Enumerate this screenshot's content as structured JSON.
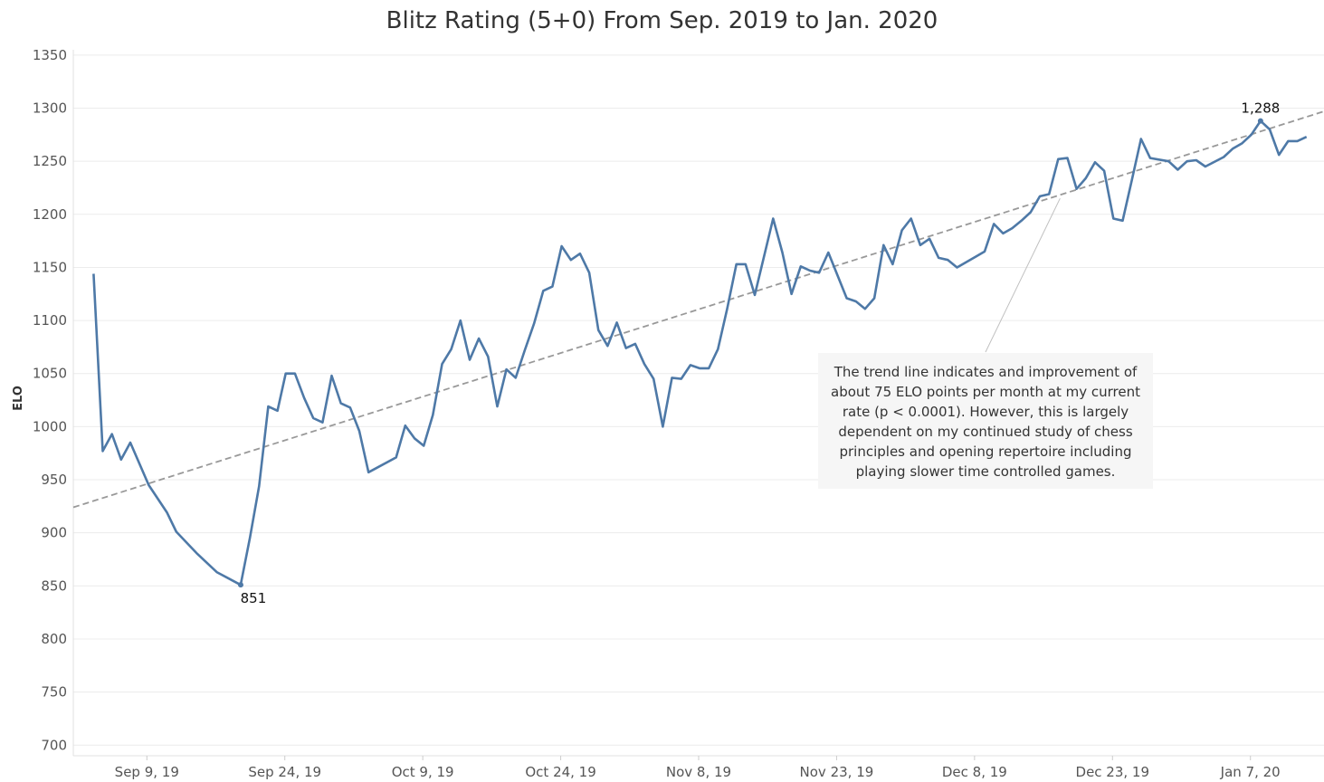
{
  "chart_data": {
    "type": "line",
    "title": "Blitz Rating (5+0) From Sep. 2019 to Jan. 2020",
    "xlabel": "",
    "ylabel": "ELO",
    "ylim": [
      690,
      1355
    ],
    "x_range": [
      "2019-09-01",
      "2020-01-15"
    ],
    "yticks": [
      700,
      750,
      800,
      850,
      900,
      950,
      1000,
      1050,
      1100,
      1150,
      1200,
      1250,
      1300,
      1350
    ],
    "xticks": [
      {
        "date": "2019-09-09",
        "label": "Sep 9, 19"
      },
      {
        "date": "2019-09-24",
        "label": "Sep 24, 19"
      },
      {
        "date": "2019-10-09",
        "label": "Oct 9, 19"
      },
      {
        "date": "2019-10-24",
        "label": "Oct 24, 19"
      },
      {
        "date": "2019-11-08",
        "label": "Nov 8, 19"
      },
      {
        "date": "2019-11-23",
        "label": "Nov 23, 19"
      },
      {
        "date": "2019-12-08",
        "label": "Dec 8, 19"
      },
      {
        "date": "2019-12-23",
        "label": "Dec 23, 19"
      },
      {
        "date": "2020-01-07",
        "label": "Jan 7, 20"
      }
    ],
    "grid": true,
    "series": [
      {
        "color": "#4e79a7",
        "points": [
          [
            "2019-09-03.2",
            1144
          ],
          [
            "2019-09-04.2",
            977
          ],
          [
            "2019-09-05.2",
            993
          ],
          [
            "2019-09-06.2",
            969
          ],
          [
            "2019-09-07.2",
            985
          ],
          [
            "2019-09-09.2",
            945
          ],
          [
            "2019-09-11.2",
            919
          ],
          [
            "2019-09-12.2",
            901
          ],
          [
            "2019-09-14.5",
            880
          ],
          [
            "2019-09-16.6",
            863
          ],
          [
            "2019-09-19.2",
            851
          ],
          [
            "2019-09-20.2",
            895
          ],
          [
            "2019-09-21.2",
            944
          ],
          [
            "2019-09-22.2",
            1019
          ],
          [
            "2019-09-23.2",
            1015
          ],
          [
            "2019-09-24.1",
            1050
          ],
          [
            "2019-09-25.1",
            1050
          ],
          [
            "2019-09-26.1",
            1027
          ],
          [
            "2019-09-27.1",
            1008
          ],
          [
            "2019-09-28.1",
            1004
          ],
          [
            "2019-09-29.1",
            1048
          ],
          [
            "2019-09-30.1",
            1022
          ],
          [
            "2019-10-01.1",
            1018
          ],
          [
            "2019-10-02.1",
            996
          ],
          [
            "2019-10-03.1",
            957
          ],
          [
            "2019-10-06.1",
            971
          ],
          [
            "2019-10-07.1",
            1001
          ],
          [
            "2019-10-08.1",
            989
          ],
          [
            "2019-10-09.1",
            982
          ],
          [
            "2019-10-10.1",
            1011
          ],
          [
            "2019-10-11.1",
            1059
          ],
          [
            "2019-10-12.1",
            1073
          ],
          [
            "2019-10-13.1",
            1100
          ],
          [
            "2019-10-14.1",
            1063
          ],
          [
            "2019-10-15.1",
            1083
          ],
          [
            "2019-10-16.1",
            1066
          ],
          [
            "2019-10-17.1",
            1019
          ],
          [
            "2019-10-18.1",
            1054
          ],
          [
            "2019-10-19.1",
            1046
          ],
          [
            "2019-10-20.1",
            1072
          ],
          [
            "2019-10-21.1",
            1097
          ],
          [
            "2019-10-22.1",
            1128
          ],
          [
            "2019-10-23.1",
            1132
          ],
          [
            "2019-10-24.1",
            1170
          ],
          [
            "2019-10-25.1",
            1157
          ],
          [
            "2019-10-26.1",
            1163
          ],
          [
            "2019-10-27.1",
            1145
          ],
          [
            "2019-10-28.1",
            1091
          ],
          [
            "2019-10-29.1",
            1076
          ],
          [
            "2019-10-30.1",
            1098
          ],
          [
            "2019-10-31.1",
            1074
          ],
          [
            "2019-11-01.1",
            1078
          ],
          [
            "2019-11-02.1",
            1059
          ],
          [
            "2019-11-03.1",
            1045
          ],
          [
            "2019-11-04.1",
            1000
          ],
          [
            "2019-11-05.1",
            1046
          ],
          [
            "2019-11-06.1",
            1045
          ],
          [
            "2019-11-07.1",
            1058
          ],
          [
            "2019-11-08.1",
            1055
          ],
          [
            "2019-11-09.1",
            1055
          ],
          [
            "2019-11-10.1",
            1073
          ],
          [
            "2019-11-11.1",
            1111
          ],
          [
            "2019-11-12.1",
            1153
          ],
          [
            "2019-11-13.1",
            1153
          ],
          [
            "2019-11-14.1",
            1124
          ],
          [
            "2019-11-16.1",
            1196
          ],
          [
            "2019-11-17.1",
            1164
          ],
          [
            "2019-11-18.1",
            1125
          ],
          [
            "2019-11-19.1",
            1151
          ],
          [
            "2019-11-20.1",
            1147
          ],
          [
            "2019-11-21.1",
            1145
          ],
          [
            "2019-11-22.1",
            1164
          ],
          [
            "2019-11-24.1",
            1121
          ],
          [
            "2019-11-25.1",
            1118
          ],
          [
            "2019-11-26.1",
            1111
          ],
          [
            "2019-11-27.1",
            1121
          ],
          [
            "2019-11-28.1",
            1171
          ],
          [
            "2019-11-29.1",
            1153
          ],
          [
            "2019-11-30.1",
            1185
          ],
          [
            "2019-12-01.1",
            1196
          ],
          [
            "2019-12-02.1",
            1171
          ],
          [
            "2019-12-03.1",
            1177
          ],
          [
            "2019-12-04.1",
            1159
          ],
          [
            "2019-12-05.1",
            1157
          ],
          [
            "2019-12-06.1",
            1150
          ],
          [
            "2019-12-08.1",
            1160
          ],
          [
            "2019-12-09.1",
            1165
          ],
          [
            "2019-12-10.1",
            1191
          ],
          [
            "2019-12-11.1",
            1182
          ],
          [
            "2019-12-12.1",
            1187
          ],
          [
            "2019-12-13.1",
            1194
          ],
          [
            "2019-12-14.1",
            1202
          ],
          [
            "2019-12-15.1",
            1217
          ],
          [
            "2019-12-16.1",
            1219
          ],
          [
            "2019-12-17.1",
            1252
          ],
          [
            "2019-12-18.1",
            1253
          ],
          [
            "2019-12-19.1",
            1224
          ],
          [
            "2019-12-20.1",
            1234
          ],
          [
            "2019-12-21.1",
            1249
          ],
          [
            "2019-12-22.1",
            1241
          ],
          [
            "2019-12-23.1",
            1196
          ],
          [
            "2019-12-24.1",
            1194
          ],
          [
            "2019-12-25.1",
            1232
          ],
          [
            "2019-12-26.1",
            1271
          ],
          [
            "2019-12-27.1",
            1253
          ],
          [
            "2019-12-29.1",
            1250
          ],
          [
            "2019-12-30.1",
            1242
          ],
          [
            "2019-12-31.1",
            1250
          ],
          [
            "2020-01-01.1",
            1251
          ],
          [
            "2020-01-02.1",
            1245
          ],
          [
            "2020-01-04.1",
            1254
          ],
          [
            "2020-01-05.1",
            1262
          ],
          [
            "2020-01-06.1",
            1267
          ],
          [
            "2020-01-07.1",
            1275
          ],
          [
            "2020-01-08.1",
            1288
          ],
          [
            "2020-01-09.1",
            1280
          ],
          [
            "2020-01-10.1",
            1256
          ],
          [
            "2020-01-11.1",
            1269
          ],
          [
            "2020-01-12.1",
            1269
          ],
          [
            "2020-01-13.1",
            1273
          ]
        ]
      }
    ],
    "trend_line": {
      "start": [
        "2019-09-01",
        924
      ],
      "end": [
        "2020-01-15",
        1297
      ],
      "style": "dashed",
      "color": "#999999"
    },
    "data_labels": [
      {
        "date": "2019-09-19.2",
        "value": 851,
        "text": "851",
        "position": "below"
      },
      {
        "date": "2020-01-08.1",
        "value": 1288,
        "text": "1,288",
        "position": "above"
      }
    ],
    "annotation": {
      "text": "The trend line indicates and improvement of about 75 ELO points per month at my current rate (p < 0.0001). However, this is largely dependent on my continued study of chess principles and opening repertoire including playing slower time controlled games.",
      "pointer_target": [
        "2019-12-17.3",
        1215
      ]
    }
  }
}
